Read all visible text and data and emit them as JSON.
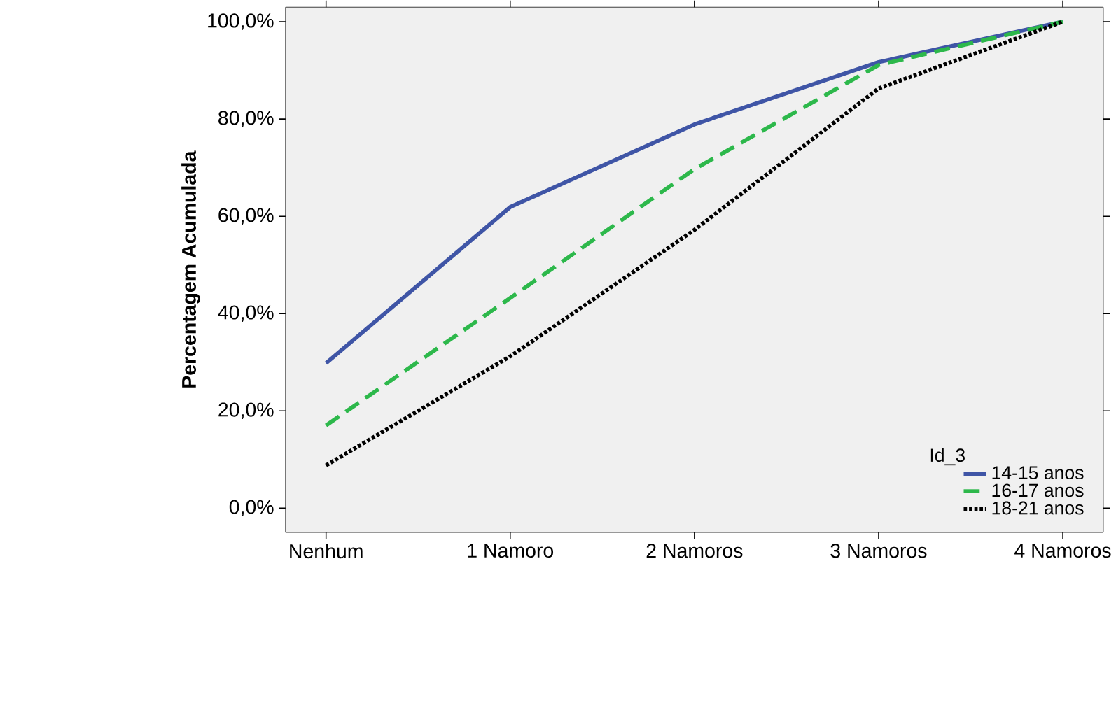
{
  "chart_data": {
    "type": "line",
    "ylabel": "Percentagem Acumulada",
    "legend_title": "Id_3",
    "legend": "bottom right",
    "grid": false,
    "categories": [
      "Nenhum",
      "1 Namoro",
      "2 Namoros",
      "3 Namoros",
      "4 Namoros"
    ],
    "ylim": [
      -5,
      103
    ],
    "yticks": [
      {
        "value": 0,
        "label": "0,0%"
      },
      {
        "value": 20,
        "label": "20,0%"
      },
      {
        "value": 40,
        "label": "40,0%"
      },
      {
        "value": 60,
        "label": "60,0%"
      },
      {
        "value": 80,
        "label": "80,0%"
      },
      {
        "value": 100,
        "label": "100,0%"
      }
    ],
    "series": [
      {
        "name": "14-15 anos",
        "color": "#3f55a6",
        "line_style": "solid",
        "values": [
          29.8,
          61.9,
          78.9,
          91.7,
          100
        ]
      },
      {
        "name": "16-17 anos",
        "color": "#2db84b",
        "line_style": "dashed",
        "values": [
          17.0,
          43.2,
          69.7,
          91.1,
          100
        ]
      },
      {
        "name": "18-21 anos",
        "color": "#000000",
        "line_style": "dotted",
        "values": [
          8.8,
          31.2,
          57.2,
          86.3,
          100
        ]
      }
    ]
  }
}
